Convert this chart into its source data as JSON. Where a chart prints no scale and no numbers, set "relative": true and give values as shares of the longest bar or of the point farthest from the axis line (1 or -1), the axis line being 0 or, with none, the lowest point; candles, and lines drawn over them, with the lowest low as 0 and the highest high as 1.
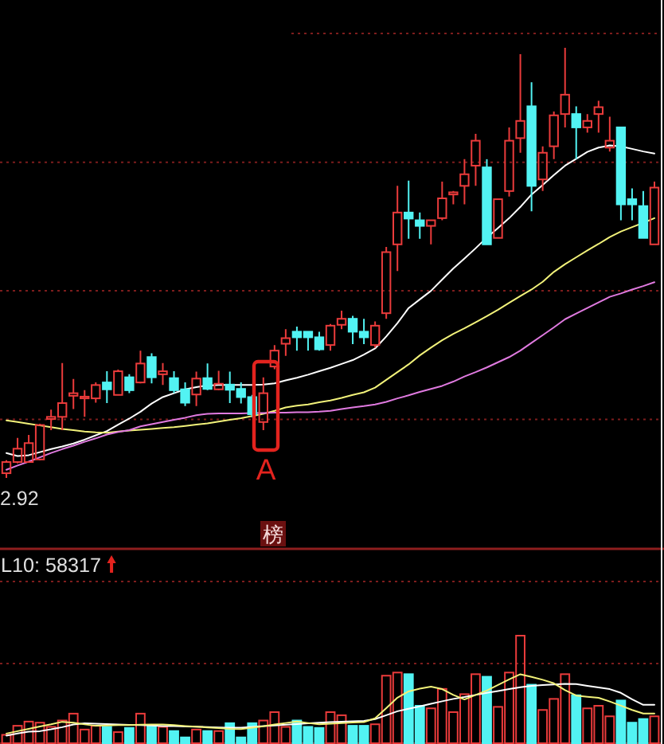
{
  "chart_data": [
    {
      "type": "candlestick",
      "relative": true,
      "categories": [
        null,
        null,
        null,
        null,
        null,
        null,
        null,
        null,
        null,
        null,
        null,
        null,
        null,
        null,
        null,
        null,
        null,
        null,
        null,
        null,
        null,
        null,
        null,
        null,
        null,
        null,
        null,
        null,
        null,
        null,
        null,
        null,
        null,
        null,
        null,
        null,
        null,
        null,
        null,
        null,
        null,
        null,
        null,
        null,
        null,
        null,
        null,
        null,
        null,
        null,
        null,
        null,
        null,
        null,
        null,
        null,
        null,
        null,
        null
      ],
      "ohlc": [
        [
          0.011,
          0.041,
          0,
          0.037
        ],
        [
          0.037,
          0.093,
          0.034,
          0.068
        ],
        [
          0.037,
          0.1,
          0.037,
          0.081
        ],
        [
          0.043,
          0.126,
          0.041,
          0.123
        ],
        [
          0.137,
          0.159,
          0.111,
          0.142
        ],
        [
          0.142,
          0.267,
          0.111,
          0.174
        ],
        [
          0.191,
          0.23,
          0.16,
          0.197
        ],
        [
          0.185,
          0.204,
          0.142,
          0.189
        ],
        [
          0.185,
          0.222,
          0.175,
          0.216
        ],
        [
          0.222,
          0.248,
          0.174,
          0.206
        ],
        [
          0.193,
          0.252,
          0.193,
          0.248
        ],
        [
          0.234,
          0.241,
          0.197,
          0.204
        ],
        [
          0.222,
          0.296,
          0.22,
          0.266
        ],
        [
          0.281,
          0.29,
          0.22,
          0.234
        ],
        [
          0.241,
          0.267,
          0.216,
          0.248
        ],
        [
          0.232,
          0.248,
          0.197,
          0.204
        ],
        [
          0.206,
          0.222,
          0.167,
          0.175
        ],
        [
          0.194,
          0.247,
          0.167,
          0.231
        ],
        [
          0.232,
          0.266,
          0.204,
          0.207
        ],
        [
          0.206,
          0.249,
          0.204,
          0.219
        ],
        [
          0.217,
          0.247,
          0.174,
          0.205
        ],
        [
          0.207,
          0.222,
          0.173,
          0.188
        ],
        [
          0.188,
          0.193,
          0.141,
          0.148
        ],
        [
          0.13,
          0.234,
          0.111,
          0.197
        ],
        [
          0.259,
          0.309,
          0.253,
          0.296
        ],
        [
          0.312,
          0.346,
          0.284,
          0.325
        ],
        [
          0.34,
          0.352,
          0.296,
          0.327
        ],
        [
          0.34,
          0.34,
          0.296,
          0.327
        ],
        [
          0.327,
          0.34,
          0.296,
          0.299
        ],
        [
          0.309,
          0.358,
          0.296,
          0.354
        ],
        [
          0.356,
          0.389,
          0.346,
          0.37
        ],
        [
          0.37,
          0.377,
          0.311,
          0.34
        ],
        [
          0.34,
          0.37,
          0.311,
          0.327
        ],
        [
          0.309,
          0.364,
          0.303,
          0.354
        ],
        [
          0.383,
          0.537,
          0.37,
          0.525
        ],
        [
          0.543,
          0.679,
          0.481,
          0.617
        ],
        [
          0.617,
          0.691,
          0.556,
          0.603
        ],
        [
          0.599,
          0.617,
          0.556,
          0.586
        ],
        [
          0.586,
          0.599,
          0.543,
          0.599
        ],
        [
          0.604,
          0.689,
          0.599,
          0.65
        ],
        [
          0.659,
          0.667,
          0.636,
          0.664
        ],
        [
          0.679,
          0.741,
          0.636,
          0.706
        ],
        [
          0.726,
          0.8,
          0.679,
          0.784
        ],
        [
          0.722,
          0.741,
          0.543,
          0.543
        ],
        [
          0.558,
          0.648,
          0.558,
          0.648
        ],
        [
          0.667,
          0.815,
          0.654,
          0.784
        ],
        [
          0.79,
          0.985,
          0.756,
          0.83
        ],
        [
          0.864,
          0.92,
          0.62,
          0.679
        ],
        [
          0.694,
          0.771,
          0.667,
          0.756
        ],
        [
          0.771,
          0.852,
          0.741,
          0.843
        ],
        [
          0.846,
          1,
          0.815,
          0.891
        ],
        [
          0.846,
          0.864,
          0.741,
          0.815
        ],
        [
          0.815,
          0.846,
          0.803,
          0.83
        ],
        [
          0.846,
          0.877,
          0.803,
          0.862
        ],
        [
          0.768,
          0.84,
          0.759,
          0.784
        ],
        [
          0.815,
          0.815,
          0.599,
          0.636
        ],
        [
          0.648,
          0.673,
          0.599,
          0.636
        ],
        [
          0.632,
          0.667,
          0.558,
          0.558
        ],
        [
          0.543,
          0.689,
          0.543,
          0.675
        ]
      ],
      "colors": [
        "#ea3b3b",
        "#ea3b3b",
        "#ea3b3b",
        "#ea3b3b",
        "#ea3b3b",
        "#ea3b3b",
        "#ea3b3b",
        "#ea3b3b",
        "#ea3b3b",
        "#52f3f3",
        "#ea3b3b",
        "#52f3f3",
        "#ea3b3b",
        "#52f3f3",
        "#ea3b3b",
        "#52f3f3",
        "#52f3f3",
        "#ea3b3b",
        "#52f3f3",
        "#ea3b3b",
        "#52f3f3",
        "#52f3f3",
        "#52f3f3",
        "#ea3b3b",
        "#ea3b3b",
        "#ea3b3b",
        "#52f3f3",
        "#52f3f3",
        "#52f3f3",
        "#ea3b3b",
        "#ea3b3b",
        "#52f3f3",
        "#52f3f3",
        "#ea3b3b",
        "#ea3b3b",
        "#ea3b3b",
        "#52f3f3",
        "#52f3f3",
        "#ea3b3b",
        "#ea3b3b",
        "#ea3b3b",
        "#ea3b3b",
        "#ea3b3b",
        "#52f3f3",
        "#ea3b3b",
        "#ea3b3b",
        "#ea3b3b",
        "#52f3f3",
        "#ea3b3b",
        "#ea3b3b",
        "#ea3b3b",
        "#52f3f3",
        "#ea3b3b",
        "#ea3b3b",
        "#ea3b3b",
        "#52f3f3",
        "#52f3f3",
        "#52f3f3",
        "#ea3b3b"
      ],
      "series": [
        {
          "type": "line",
          "color": "#ffffff",
          "values": [
            0.058,
            0.051,
            0.053,
            0.06,
            0.067,
            0.073,
            0.08,
            0.089,
            0.099,
            0.109,
            0.124,
            0.138,
            0.154,
            0.173,
            0.188,
            0.197,
            0.206,
            0.211,
            0.215,
            0.216,
            0.216,
            0.216,
            0.216,
            0.217,
            0.22,
            0.227,
            0.233,
            0.24,
            0.248,
            0.256,
            0.265,
            0.274,
            0.287,
            0.301,
            0.329,
            0.36,
            0.395,
            0.415,
            0.435,
            0.461,
            0.487,
            0.51,
            0.534,
            0.559,
            0.581,
            0.604,
            0.63,
            0.659,
            0.681,
            0.704,
            0.726,
            0.742,
            0.758,
            0.768,
            0.773,
            0.771,
            0.765,
            0.759,
            0.754
          ]
        },
        {
          "type": "line",
          "color": "#f2f27a",
          "values": [
            0.134,
            0.13,
            0.126,
            0.122,
            0.118,
            0.114,
            0.111,
            0.108,
            0.106,
            0.105,
            0.108,
            0.11,
            0.112,
            0.114,
            0.116,
            0.118,
            0.121,
            0.124,
            0.127,
            0.131,
            0.135,
            0.139,
            0.144,
            0.149,
            0.156,
            0.164,
            0.168,
            0.171,
            0.176,
            0.18,
            0.186,
            0.193,
            0.199,
            0.21,
            0.228,
            0.246,
            0.264,
            0.285,
            0.303,
            0.32,
            0.335,
            0.348,
            0.362,
            0.376,
            0.391,
            0.407,
            0.423,
            0.438,
            0.456,
            0.479,
            0.497,
            0.513,
            0.529,
            0.544,
            0.56,
            0.573,
            0.583,
            0.593,
            0.604
          ]
        },
        {
          "type": "line",
          "color": "#e07ae0",
          "values": [
            0.019,
            0.029,
            0.038,
            0.048,
            0.058,
            0.067,
            0.075,
            0.084,
            0.092,
            0.101,
            0.107,
            0.111,
            0.12,
            0.125,
            0.13,
            0.135,
            0.14,
            0.146,
            0.149,
            0.15,
            0.15,
            0.15,
            0.151,
            0.151,
            0.152,
            0.152,
            0.153,
            0.153,
            0.154,
            0.156,
            0.16,
            0.164,
            0.167,
            0.171,
            0.177,
            0.185,
            0.192,
            0.2,
            0.207,
            0.214,
            0.224,
            0.236,
            0.246,
            0.257,
            0.269,
            0.281,
            0.296,
            0.314,
            0.332,
            0.35,
            0.369,
            0.382,
            0.395,
            0.408,
            0.421,
            0.429,
            0.438,
            0.446,
            0.455
          ]
        }
      ],
      "ref_lines": [
        {
          "axis": "y",
          "value": 0.734,
          "color": "#7e1d1d",
          "line_style": "dotted"
        },
        {
          "axis": "y",
          "value": 0.435,
          "color": "#7e1d1d",
          "line_style": "dotted"
        },
        {
          "axis": "y",
          "value": 0.136,
          "color": "#7e1d1d",
          "line_style": "dotted"
        }
      ],
      "annotations": [
        "2.92",
        "A",
        "榜"
      ]
    },
    {
      "type": "bar",
      "relative": true,
      "categories": [
        null,
        null,
        null,
        null,
        null,
        null,
        null,
        null,
        null,
        null,
        null,
        null,
        null,
        null,
        null,
        null,
        null,
        null,
        null,
        null,
        null,
        null,
        null,
        null,
        null,
        null,
        null,
        null,
        null,
        null,
        null,
        null,
        null,
        null,
        null,
        null,
        null,
        null,
        null,
        null,
        null,
        null,
        null,
        null,
        null,
        null,
        null,
        null,
        null,
        null,
        null,
        null,
        null,
        null,
        null,
        null,
        null,
        null,
        null
      ],
      "series": [
        {
          "type": "bar",
          "values": [
            0.078,
            0.162,
            0.201,
            0.191,
            0.152,
            0.211,
            0.275,
            0.127,
            0.162,
            0.152,
            0.103,
            0.142,
            0.275,
            0.162,
            0.152,
            0.113,
            0.054,
            0.127,
            0.113,
            0.113,
            0.186,
            0.054,
            0.186,
            0.211,
            0.289,
            0.152,
            0.211,
            0.152,
            0.142,
            0.289,
            0.26,
            0.162,
            0.162,
            0.176,
            0.628,
            0.657,
            0.642,
            0.348,
            0.324,
            0.505,
            0.289,
            0.456,
            0.642,
            0.618,
            0.338,
            0.657,
            1,
            0.544,
            0.309,
            0.412,
            0.642,
            0.446,
            0.324,
            0.348,
            0.25,
            0.397,
            0.191,
            0.225,
            0.25
          ],
          "colors": [
            "#ea3b3b",
            "#ea3b3b",
            "#ea3b3b",
            "#ea3b3b",
            "#ea3b3b",
            "#ea3b3b",
            "#ea3b3b",
            "#ea3b3b",
            "#ea3b3b",
            "#52f3f3",
            "#ea3b3b",
            "#52f3f3",
            "#ea3b3b",
            "#52f3f3",
            "#ea3b3b",
            "#52f3f3",
            "#52f3f3",
            "#ea3b3b",
            "#52f3f3",
            "#ea3b3b",
            "#52f3f3",
            "#52f3f3",
            "#52f3f3",
            "#ea3b3b",
            "#ea3b3b",
            "#ea3b3b",
            "#52f3f3",
            "#52f3f3",
            "#52f3f3",
            "#ea3b3b",
            "#ea3b3b",
            "#52f3f3",
            "#52f3f3",
            "#ea3b3b",
            "#ea3b3b",
            "#ea3b3b",
            "#52f3f3",
            "#52f3f3",
            "#ea3b3b",
            "#ea3b3b",
            "#ea3b3b",
            "#ea3b3b",
            "#ea3b3b",
            "#52f3f3",
            "#ea3b3b",
            "#ea3b3b",
            "#ea3b3b",
            "#52f3f3",
            "#ea3b3b",
            "#ea3b3b",
            "#ea3b3b",
            "#52f3f3",
            "#ea3b3b",
            "#ea3b3b",
            "#ea3b3b",
            "#52f3f3",
            "#52f3f3",
            "#52f3f3",
            "#ea3b3b"
          ]
        },
        {
          "type": "line",
          "color": "#ffffff",
          "values": [
            0.071,
            0.091,
            0.107,
            0.112,
            0.129,
            0.149,
            0.174,
            0.185,
            0.182,
            0.178,
            0.175,
            0.171,
            0.168,
            0.165,
            0.16,
            0.159,
            0.156,
            0.153,
            0.15,
            0.147,
            0.144,
            0.144,
            0.151,
            0.159,
            0.165,
            0.172,
            0.178,
            0.185,
            0.191,
            0.196,
            0.2,
            0.203,
            0.207,
            0.224,
            0.26,
            0.297,
            0.321,
            0.343,
            0.366,
            0.39,
            0.412,
            0.429,
            0.449,
            0.468,
            0.485,
            0.504,
            0.521,
            0.534,
            0.54,
            0.546,
            0.551,
            0.55,
            0.534,
            0.519,
            0.503,
            0.468,
            0.409,
            0.357,
            0.357
          ]
        },
        {
          "type": "line",
          "color": "#f2f27a",
          "values": [
            0.09,
            0.112,
            0.134,
            0.156,
            0.176,
            0.199,
            0.19,
            0.175,
            0.162,
            0.165,
            0.168,
            0.169,
            0.172,
            0.175,
            0.174,
            0.168,
            0.16,
            0.154,
            0.147,
            0.14,
            0.134,
            0.131,
            0.144,
            0.157,
            0.174,
            0.188,
            0.201,
            0.188,
            0.176,
            0.182,
            0.187,
            0.193,
            0.196,
            0.231,
            0.326,
            0.424,
            0.482,
            0.507,
            0.526,
            0.503,
            0.449,
            0.407,
            0.449,
            0.49,
            0.541,
            0.593,
            0.641,
            0.616,
            0.59,
            0.557,
            0.493,
            0.443,
            0.432,
            0.422,
            0.388,
            0.349,
            0.309,
            0.276,
            0.276
          ]
        }
      ],
      "ref_lines": [
        {
          "axis": "y",
          "value": 0.74,
          "color": "#7e1d1d",
          "line_style": "dotted"
        }
      ],
      "annotations": [
        "L10: 58317"
      ]
    }
  ]
}
